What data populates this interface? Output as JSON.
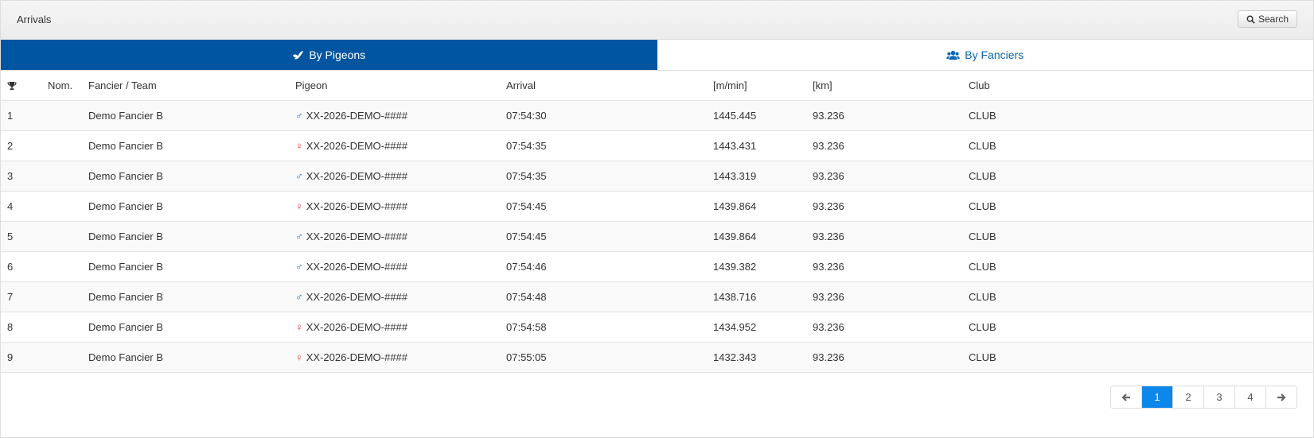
{
  "panel": {
    "title": "Arrivals",
    "search_label": "Search"
  },
  "tabs": [
    {
      "label": "By Pigeons"
    },
    {
      "label": "By Fanciers"
    }
  ],
  "columns": {
    "nom": "Nom.",
    "fancier": "Fancier / Team",
    "pigeon": "Pigeon",
    "arrival": "Arrival",
    "speed": "[m/min]",
    "km": "[km]",
    "club": "Club"
  },
  "rows": [
    {
      "rank": "1",
      "nom": "",
      "fancier": "Demo Fancier B",
      "sex": "male",
      "pigeon": "XX-2026-DEMO-####",
      "arrival": "07:54:30",
      "speed": "1445.445",
      "km": "93.236",
      "club": "CLUB"
    },
    {
      "rank": "2",
      "nom": "",
      "fancier": "Demo Fancier B",
      "sex": "female",
      "pigeon": "XX-2026-DEMO-####",
      "arrival": "07:54:35",
      "speed": "1443.431",
      "km": "93.236",
      "club": "CLUB"
    },
    {
      "rank": "3",
      "nom": "",
      "fancier": "Demo Fancier B",
      "sex": "male",
      "pigeon": "XX-2026-DEMO-####",
      "arrival": "07:54:35",
      "speed": "1443.319",
      "km": "93.236",
      "club": "CLUB"
    },
    {
      "rank": "4",
      "nom": "",
      "fancier": "Demo Fancier B",
      "sex": "female",
      "pigeon": "XX-2026-DEMO-####",
      "arrival": "07:54:45",
      "speed": "1439.864",
      "km": "93.236",
      "club": "CLUB"
    },
    {
      "rank": "5",
      "nom": "",
      "fancier": "Demo Fancier B",
      "sex": "male",
      "pigeon": "XX-2026-DEMO-####",
      "arrival": "07:54:45",
      "speed": "1439.864",
      "km": "93.236",
      "club": "CLUB"
    },
    {
      "rank": "6",
      "nom": "",
      "fancier": "Demo Fancier B",
      "sex": "male",
      "pigeon": "XX-2026-DEMO-####",
      "arrival": "07:54:46",
      "speed": "1439.382",
      "km": "93.236",
      "club": "CLUB"
    },
    {
      "rank": "7",
      "nom": "",
      "fancier": "Demo Fancier B",
      "sex": "male",
      "pigeon": "XX-2026-DEMO-####",
      "arrival": "07:54:48",
      "speed": "1438.716",
      "km": "93.236",
      "club": "CLUB"
    },
    {
      "rank": "8",
      "nom": "",
      "fancier": "Demo Fancier B",
      "sex": "female",
      "pigeon": "XX-2026-DEMO-####",
      "arrival": "07:54:58",
      "speed": "1434.952",
      "km": "93.236",
      "club": "CLUB"
    },
    {
      "rank": "9",
      "nom": "",
      "fancier": "Demo Fancier B",
      "sex": "female",
      "pigeon": "XX-2026-DEMO-####",
      "arrival": "07:55:05",
      "speed": "1432.343",
      "km": "93.236",
      "club": "CLUB"
    }
  ],
  "pagination": {
    "pages": [
      "1",
      "2",
      "3",
      "4"
    ],
    "current": "1"
  },
  "icons": {
    "search": "search-icon",
    "pigeon": "dove-icon",
    "fanciers": "users-icon",
    "rank": "trophy-icon",
    "male": "male-symbol-icon",
    "female": "female-symbol-icon",
    "prev": "arrow-left-icon",
    "next": "arrow-right-icon"
  },
  "colors": {
    "active_tab": "#0055a1",
    "inactive_tab_text": "#0a67b5",
    "male": "#1a73c7",
    "female": "#e23b3b",
    "active_page": "#0d87e9"
  }
}
